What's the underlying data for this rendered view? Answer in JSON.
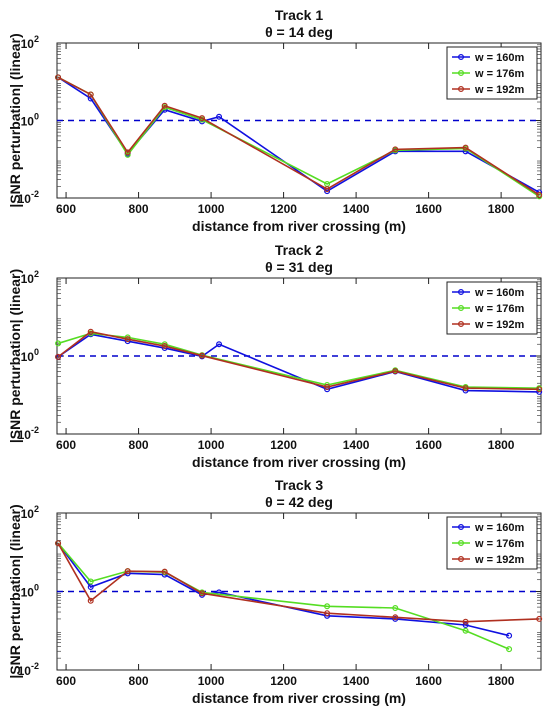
{
  "chart_data": [
    {
      "type": "line",
      "title": "Track 1",
      "subtitle": "θ = 14 deg",
      "xlabel": "distance from river crossing (m)",
      "ylabel": "|SNR perturbation| (linear)",
      "xlim": [
        575,
        1910
      ],
      "ylim": [
        0.01,
        100
      ],
      "yscale": "log",
      "xticks": [
        600,
        800,
        1000,
        1200,
        1400,
        1600,
        1800
      ],
      "yticks": [
        {
          "v": 0.01,
          "base": "10",
          "exp": "-2"
        },
        {
          "v": 1,
          "base": "10",
          "exp": "0"
        },
        {
          "v": 100,
          "base": "10",
          "exp": "2"
        }
      ],
      "reference_line": {
        "y": 1,
        "style": "dashed",
        "color": "#0000CC"
      },
      "legend_position": "top-right",
      "series": [
        {
          "name": "w = 160m",
          "color": "#1010E0",
          "points": [
            [
              578,
              13
            ],
            [
              668,
              3.7
            ],
            [
              770,
              0.14
            ],
            [
              872,
              1.9
            ],
            [
              975,
              0.95
            ],
            [
              1022,
              1.25
            ],
            [
              1320,
              0.015
            ],
            [
              1508,
              0.16
            ],
            [
              1702,
              0.16
            ],
            [
              1905,
              0.014
            ]
          ]
        },
        {
          "name": "w = 176m",
          "color": "#55DD22",
          "points": [
            [
              578,
              13
            ],
            [
              668,
              4.7
            ],
            [
              770,
              0.13
            ],
            [
              872,
              2.2
            ],
            [
              975,
              1.05
            ],
            [
              1320,
              0.023
            ],
            [
              1508,
              0.17
            ],
            [
              1702,
              0.19
            ],
            [
              1905,
              0.011
            ]
          ]
        },
        {
          "name": "w = 192m",
          "color": "#B03020",
          "points": [
            [
              578,
              13
            ],
            [
              668,
              4.7
            ],
            [
              770,
              0.15
            ],
            [
              872,
              2.4
            ],
            [
              975,
              1.15
            ],
            [
              1320,
              0.017
            ],
            [
              1508,
              0.18
            ],
            [
              1702,
              0.2
            ],
            [
              1905,
              0.012
            ]
          ]
        }
      ]
    },
    {
      "type": "line",
      "title": "Track 2",
      "subtitle": "θ = 31 deg",
      "xlabel": "distance from river crossing (m)",
      "ylabel": "|SNR perturbation| (linear)",
      "xlim": [
        575,
        1910
      ],
      "ylim": [
        0.01,
        100
      ],
      "yscale": "log",
      "xticks": [
        600,
        800,
        1000,
        1200,
        1400,
        1600,
        1800
      ],
      "yticks": [
        {
          "v": 0.01,
          "base": "10",
          "exp": "-2"
        },
        {
          "v": 1,
          "base": "10",
          "exp": "0"
        },
        {
          "v": 100,
          "base": "10",
          "exp": "2"
        }
      ],
      "reference_line": {
        "y": 1,
        "style": "dashed",
        "color": "#0000CC"
      },
      "legend_position": "top-right",
      "series": [
        {
          "name": "w = 160m",
          "color": "#1010E0",
          "points": [
            [
              578,
              0.95
            ],
            [
              668,
              3.6
            ],
            [
              770,
              2.4
            ],
            [
              872,
              1.6
            ],
            [
              975,
              0.98
            ],
            [
              1022,
              2
            ],
            [
              1320,
              0.14
            ],
            [
              1508,
              0.4
            ],
            [
              1702,
              0.13
            ],
            [
              1905,
              0.12
            ]
          ]
        },
        {
          "name": "w = 176m",
          "color": "#55DD22",
          "points": [
            [
              578,
              2.1
            ],
            [
              668,
              3.8
            ],
            [
              770,
              3
            ],
            [
              872,
              2
            ],
            [
              975,
              1.05
            ],
            [
              1320,
              0.18
            ],
            [
              1508,
              0.43
            ],
            [
              1702,
              0.16
            ],
            [
              1905,
              0.15
            ]
          ]
        },
        {
          "name": "w = 192m",
          "color": "#B03020",
          "points": [
            [
              578,
              0.95
            ],
            [
              668,
              4.2
            ],
            [
              770,
              2.7
            ],
            [
              872,
              1.8
            ],
            [
              975,
              1.02
            ],
            [
              1320,
              0.16
            ],
            [
              1508,
              0.41
            ],
            [
              1702,
              0.15
            ],
            [
              1905,
              0.14
            ]
          ]
        }
      ]
    },
    {
      "type": "line",
      "title": "Track 3",
      "subtitle": "θ = 42 deg",
      "xlabel": "distance from river crossing (m)",
      "ylabel": "|SNR perturbation| (linear)",
      "xlim": [
        575,
        1910
      ],
      "ylim": [
        0.01,
        100
      ],
      "yscale": "log",
      "xticks": [
        600,
        800,
        1000,
        1200,
        1400,
        1600,
        1800
      ],
      "yticks": [
        {
          "v": 0.01,
          "base": "10",
          "exp": "-2"
        },
        {
          "v": 1,
          "base": "10",
          "exp": "0"
        },
        {
          "v": 100,
          "base": "10",
          "exp": "2"
        }
      ],
      "reference_line": {
        "y": 1,
        "style": "dashed",
        "color": "#0000CC"
      },
      "legend_position": "top-right",
      "series": [
        {
          "name": "w = 160m",
          "color": "#1010E0",
          "points": [
            [
              578,
              17
            ],
            [
              668,
              1.3
            ],
            [
              770,
              2.9
            ],
            [
              872,
              2.7
            ],
            [
              975,
              0.82
            ],
            [
              1022,
              0.95
            ],
            [
              1320,
              0.24
            ],
            [
              1508,
              0.2
            ],
            [
              1702,
              0.14
            ],
            [
              1822,
              0.075
            ]
          ]
        },
        {
          "name": "w = 176m",
          "color": "#55DD22",
          "points": [
            [
              578,
              17
            ],
            [
              668,
              1.8
            ],
            [
              770,
              3.3
            ],
            [
              872,
              3.1
            ],
            [
              975,
              0.95
            ],
            [
              1320,
              0.42
            ],
            [
              1508,
              0.38
            ],
            [
              1702,
              0.1
            ],
            [
              1822,
              0.034
            ]
          ]
        },
        {
          "name": "w = 192m",
          "color": "#B03020",
          "points": [
            [
              578,
              17
            ],
            [
              668,
              0.58
            ],
            [
              770,
              3.3
            ],
            [
              872,
              3.2
            ],
            [
              975,
              0.9
            ],
            [
              1320,
              0.28
            ],
            [
              1508,
              0.22
            ],
            [
              1702,
              0.17
            ],
            [
              1905,
              0.2
            ]
          ]
        }
      ]
    }
  ]
}
